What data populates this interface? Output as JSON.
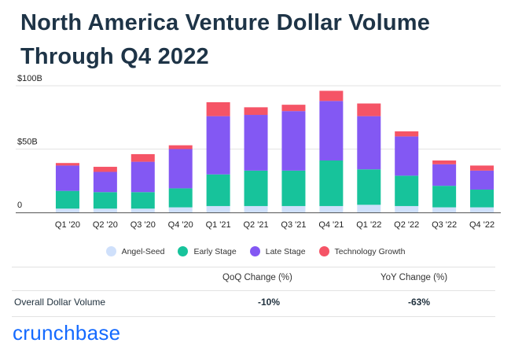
{
  "title_line1": "North America Venture Dollar Volume",
  "title_line2": "Through Q4 2022",
  "chart_data": {
    "type": "bar",
    "stacked": true,
    "categories": [
      "Q1 '20",
      "Q2 '20",
      "Q3 '20",
      "Q4 '20",
      "Q1 '21",
      "Q2 '21",
      "Q3 '21",
      "Q4 '21",
      "Q1 '22",
      "Q2 '22",
      "Q3 '22",
      "Q4 '22"
    ],
    "series": [
      {
        "name": "Angel-Seed",
        "color": "#cfe0fb",
        "values": [
          3,
          3,
          3,
          4,
          5,
          5,
          5,
          5,
          6,
          5,
          4,
          4
        ]
      },
      {
        "name": "Early Stage",
        "color": "#17c39b",
        "values": [
          14,
          13,
          13,
          15,
          25,
          28,
          28,
          36,
          28,
          24,
          17,
          14
        ]
      },
      {
        "name": "Late Stage",
        "color": "#8358f3",
        "values": [
          20,
          16,
          24,
          31,
          46,
          44,
          47,
          47,
          42,
          31,
          17,
          15
        ]
      },
      {
        "name": "Technology Growth",
        "color": "#f55466",
        "values": [
          2,
          4,
          6,
          3,
          11,
          6,
          5,
          8,
          10,
          4,
          3,
          4
        ]
      }
    ],
    "y_ticks": [
      {
        "value": 100,
        "label": "$100B"
      },
      {
        "value": 50,
        "label": "$50B"
      },
      {
        "value": 0,
        "label": "0"
      }
    ],
    "ylim": [
      0,
      100
    ],
    "grid": true,
    "legend_position": "bottom"
  },
  "table": {
    "col1": "QoQ Change (%)",
    "col2": "YoY Change (%)",
    "row_label": "Overall Dollar Volume",
    "qoq": "-10%",
    "yoy": "-63%"
  },
  "brand": "crunchbase"
}
